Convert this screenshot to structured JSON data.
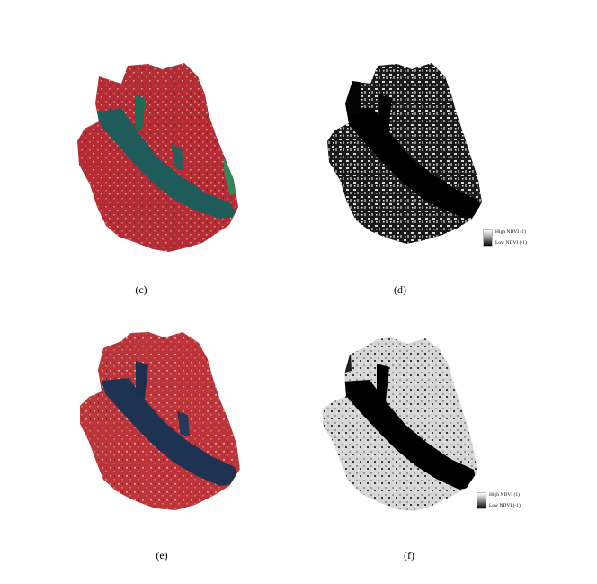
{
  "panels": [
    {
      "id": "c",
      "caption": "(c)",
      "type": "false-color"
    },
    {
      "id": "d",
      "caption": "(d)",
      "type": "ndvi-dark"
    },
    {
      "id": "e",
      "caption": "(e)",
      "type": "false-color"
    },
    {
      "id": "f",
      "caption": "(f)",
      "type": "ndvi-light"
    }
  ],
  "legend_d": {
    "high": "High NDVI (1)",
    "low": "Low NDVI (-1)"
  },
  "legend_f": {
    "high": "High NDVI (1)",
    "low": "Low NDVI (-1)"
  },
  "colors": {
    "vegetation_red": "#b8333a",
    "water_teal": "#1f5b5a",
    "water_dark_blue": "#1e3352",
    "ndvi_high": "#ffffff",
    "ndvi_low": "#000000"
  }
}
